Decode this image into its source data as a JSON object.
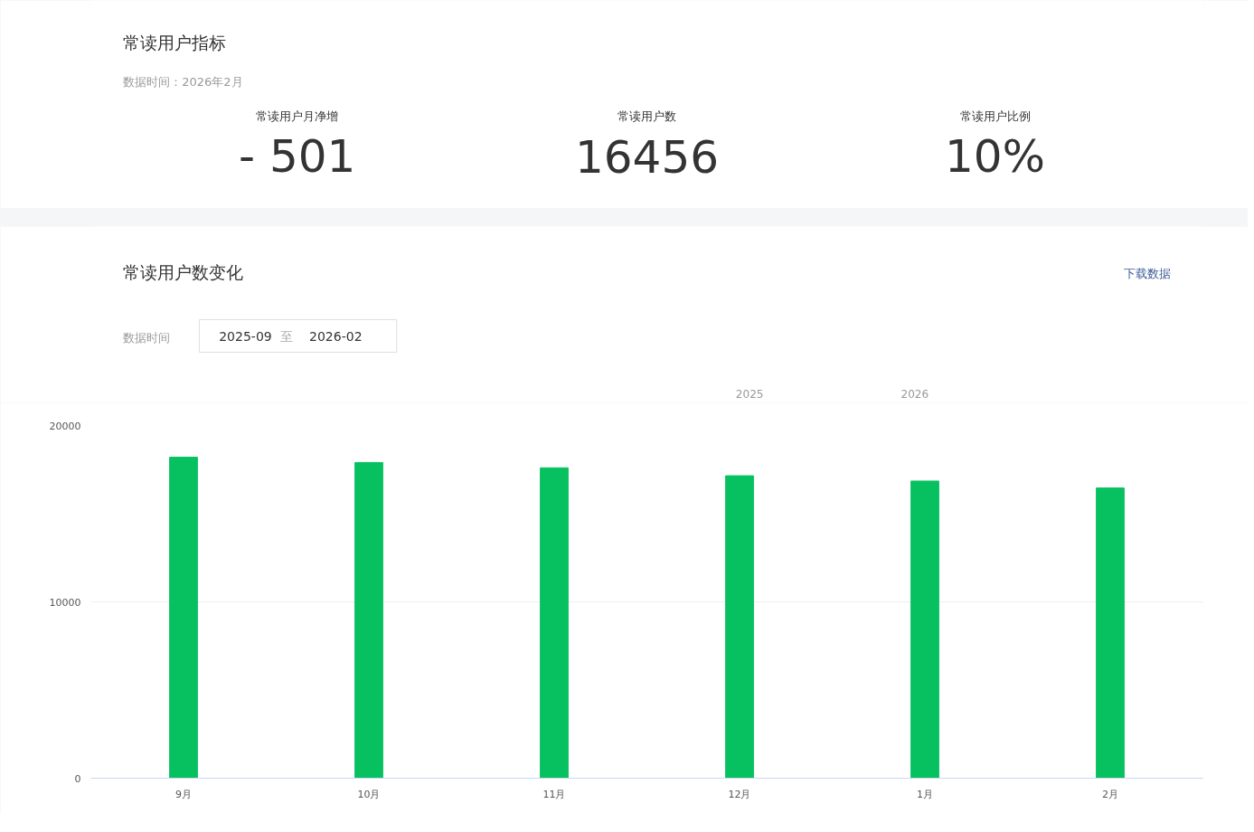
{
  "chart_data": [
    {
      "type": "other",
      "title": "常读用户指标",
      "subtitle": "数据时间：2026年2月",
      "annotations": [
        "常读用户月净增",
        "- 501",
        "常读用户数",
        "16456",
        "常读用户比例",
        "10%"
      ]
    },
    {
      "type": "bar",
      "title": "常读用户数变化",
      "categories": [
        "9月",
        "10月",
        "11月",
        "12月",
        "1月",
        "2月"
      ],
      "values": [
        18200,
        17900,
        17600,
        17150,
        16850,
        16456
      ],
      "color": "#07c160",
      "ylim": [
        0,
        20000
      ],
      "yticks": [
        0,
        10000,
        20000
      ],
      "grid": "y",
      "annotations": [
        "数据时间",
        "2025-09",
        "至",
        "2026-02",
        "下载数据",
        "2025",
        "2026"
      ]
    }
  ]
}
